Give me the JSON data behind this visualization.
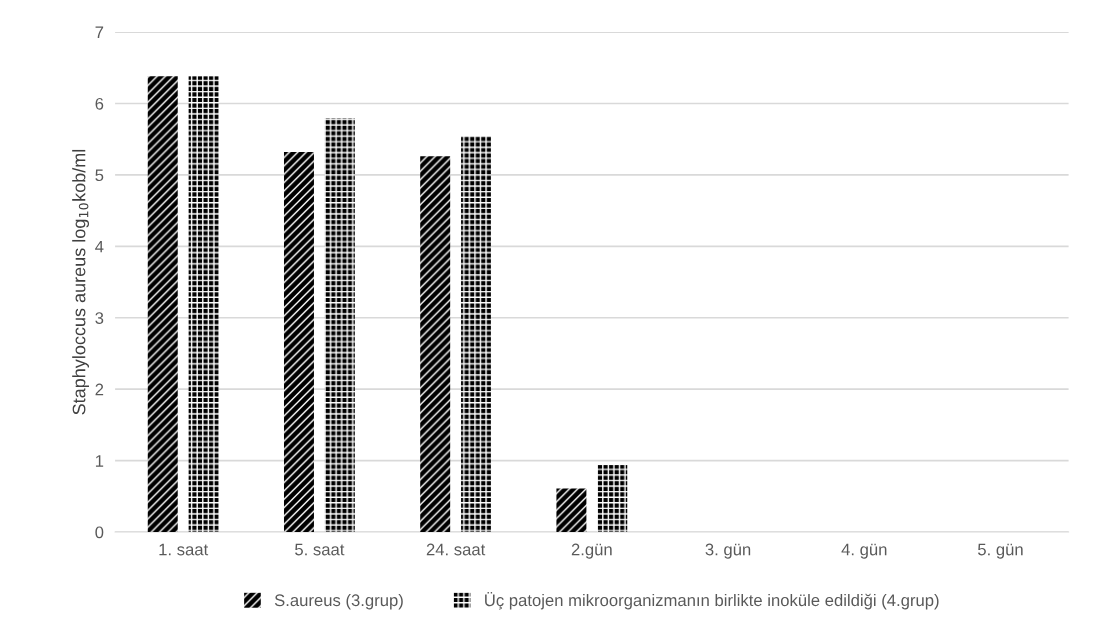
{
  "chart_data": {
    "type": "bar",
    "ylabel": "Staphyloccus aureus log$_{10}$kob/ml",
    "categories": [
      "1. saat",
      "5. saat",
      "24. saat",
      "2.gün",
      "3. gün",
      "4. gün",
      "5. gün"
    ],
    "series": [
      {
        "name": "S.aureus (3.grup)",
        "color": "#000000",
        "values": [
          6.38,
          5.32,
          5.26,
          0.61,
          0,
          0,
          0
        ]
      },
      {
        "name": "Üç patojen mikroorganizmanın birlikte inoküle edildiği (4.grup)",
        "color": "#000000",
        "values": [
          6.38,
          5.79,
          5.54,
          0.94,
          0,
          0,
          0
        ]
      }
    ],
    "ylim": [
      0,
      7
    ],
    "yticks": [
      0,
      1,
      2,
      3,
      4,
      5,
      6,
      7
    ],
    "grid": "y",
    "legend": "bottom"
  }
}
